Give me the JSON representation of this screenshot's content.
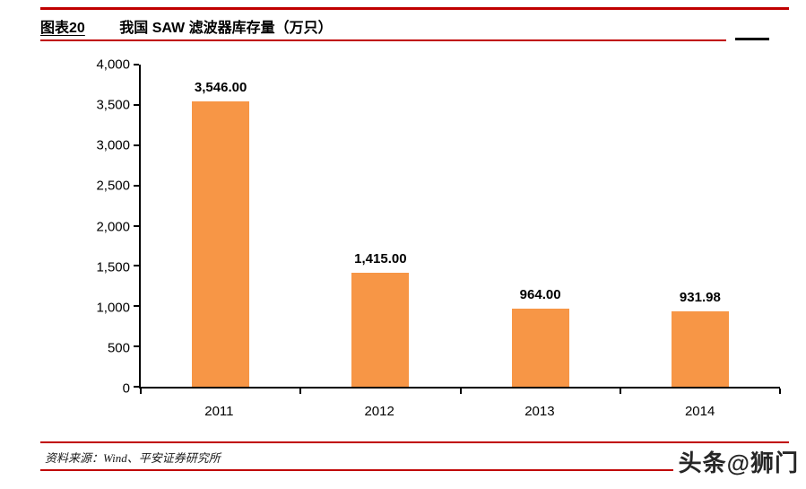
{
  "header": {
    "figure_label": "图表20",
    "title": "我国 SAW 滤波器库存量（万只）"
  },
  "chart_data": {
    "type": "bar",
    "title": "我国 SAW 滤波器库存量（万只）",
    "categories": [
      "2011",
      "2012",
      "2013",
      "2014"
    ],
    "values": [
      3546.0,
      1415.0,
      964.0,
      931.98
    ],
    "value_labels": [
      "3,546.00",
      "1,415.00",
      "964.00",
      "931.98"
    ],
    "xlabel": "",
    "ylabel": "",
    "ylim": [
      0,
      4000
    ],
    "ytick_step": 500,
    "ytick_labels": [
      "0",
      "500",
      "1,000",
      "1,500",
      "2,000",
      "2,500",
      "3,000",
      "3,500",
      "4,000"
    ],
    "grid": false,
    "legend": false,
    "bar_color": "#F79646"
  },
  "footer": {
    "source": "资料来源：Wind、平安证券研究所",
    "watermark": "头条@狮门"
  },
  "colors": {
    "accent_line": "#C00000",
    "axis": "#000000",
    "bar": "#F79646"
  }
}
